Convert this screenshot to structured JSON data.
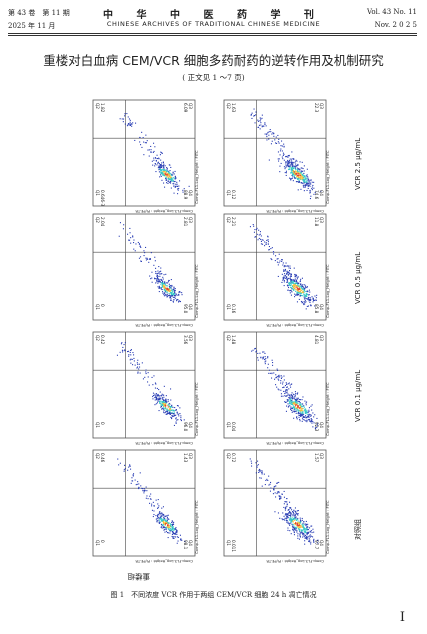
{
  "header": {
    "volume_cn": "第 43 卷　第 11 期",
    "date_cn": "2025 年 11 月",
    "journal_cn": "中 华 中 医 药 学 刊",
    "journal_en": "CHINESE ARCHIVES OF TRADITIONAL CHINESE MEDICINE",
    "volume_en": "Vol. 43 No. 11",
    "date_en": "Nov. 2 0 2 5"
  },
  "article": {
    "title": "重楼对白血病 CEM/VCR 细胞多药耐药的逆转作用及机制研究",
    "subtitle": "( 正文见 1 ～7 页)"
  },
  "figure": {
    "caption": "图 1　不同浓度 VCR 作用于两组 CEM/VCR 细胞 24 h 凋亡情况",
    "axis_label_y": "Comp-FL1-Log_Height : FITC",
    "axis_label_x": "Comp-FL3-Log_Height : PI/PE-TR",
    "group_bottom_label": "重楼组",
    "right_row_labels": [
      "VCR 2.5 μg/mL",
      "VCR 0.5 μg/mL",
      "VCR 0.1 μg/mL",
      "对照组"
    ],
    "quadrant_names": [
      "Q1",
      "Q2",
      "Q3",
      "Q4"
    ],
    "panels": [
      {
        "row": 1,
        "column": "left",
        "q1": "0.646-3",
        "q2": "1.82",
        "q3": "6.09",
        "q4": "88.9"
      },
      {
        "row": 1,
        "column": "right",
        "q1": "0.12",
        "q2": "1.63",
        "q3": "22.3",
        "q4": "74.6"
      },
      {
        "row": 2,
        "column": "left",
        "q1": "0",
        "q2": "2.04",
        "q3": "2.81",
        "q4": "95.0"
      },
      {
        "row": 2,
        "column": "right",
        "q1": "0.16",
        "q2": "2.21",
        "q3": "11.8",
        "q4": "85.8"
      },
      {
        "row": 3,
        "column": "left",
        "q1": "0",
        "q2": "0.42",
        "q3": "3.56",
        "q4": "96.0"
      },
      {
        "row": 3,
        "column": "right",
        "q1": "0.04",
        "q2": "1.48",
        "q3": "4.81",
        "q4": "92.3"
      },
      {
        "row": 4,
        "column": "left",
        "q1": "0",
        "q2": "0.46",
        "q3": "1.43",
        "q4": "98.1"
      },
      {
        "row": 4,
        "column": "right",
        "q1": "0.011",
        "q2": "0.72",
        "q3": "1.57",
        "q4": "97.7"
      }
    ]
  },
  "page_number": "I",
  "colors": {
    "plot_low": "#2b3fb5",
    "plot_mid": "#33c7c4",
    "plot_high": "#f4c13a",
    "plot_peak": "#e2412f"
  }
}
